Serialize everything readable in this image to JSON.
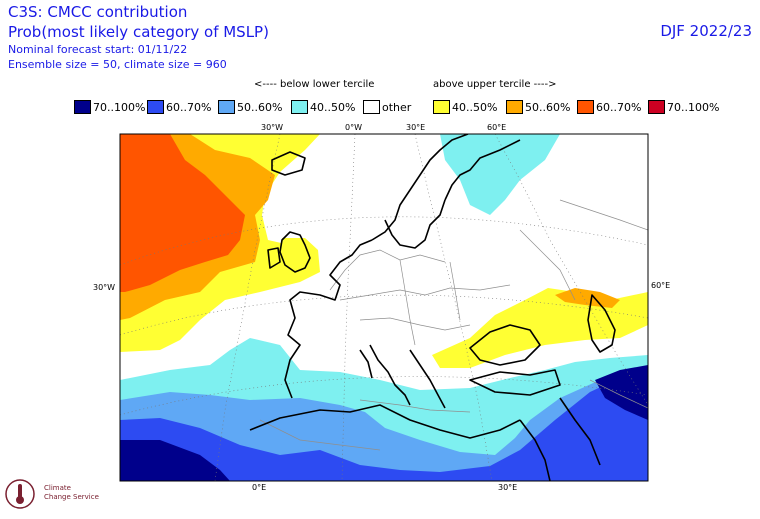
{
  "header": {
    "title": "C3S: CMCC contribution",
    "subtitle": "Prob(most likely category of MSLP)",
    "forecast_start": "Nominal forecast start: 01/11/22",
    "ensemble": "Ensemble size = 50, climate size = 960",
    "season": "DJF 2022/23"
  },
  "legend": {
    "below_label": "<---- below lower tercile",
    "above_label": "above upper tercile ---->",
    "items": [
      {
        "label": "70..100%",
        "color": "#00008b"
      },
      {
        "label": "60..70%",
        "color": "#2d4bf2"
      },
      {
        "label": "50..60%",
        "color": "#5fa8f5"
      },
      {
        "label": "40..50%",
        "color": "#7ef0f0"
      },
      {
        "label": "other",
        "color": "#ffffff"
      },
      {
        "label": "40..50%",
        "color": "#ffff33"
      },
      {
        "label": "50..60%",
        "color": "#ffaa00"
      },
      {
        "label": "60..70%",
        "color": "#ff5500"
      },
      {
        "label": "70..100%",
        "color": "#cc0022"
      }
    ]
  },
  "map": {
    "top_ticks": [
      "30°W",
      "0°W",
      "30°E",
      "60°E"
    ],
    "bottom_ticks": [
      "0°E",
      "30°E"
    ],
    "left_ticks": [
      "30°W"
    ],
    "right_ticks": [
      "60°E"
    ]
  },
  "logo": {
    "line1": "Climate",
    "line2": "Change Service"
  }
}
